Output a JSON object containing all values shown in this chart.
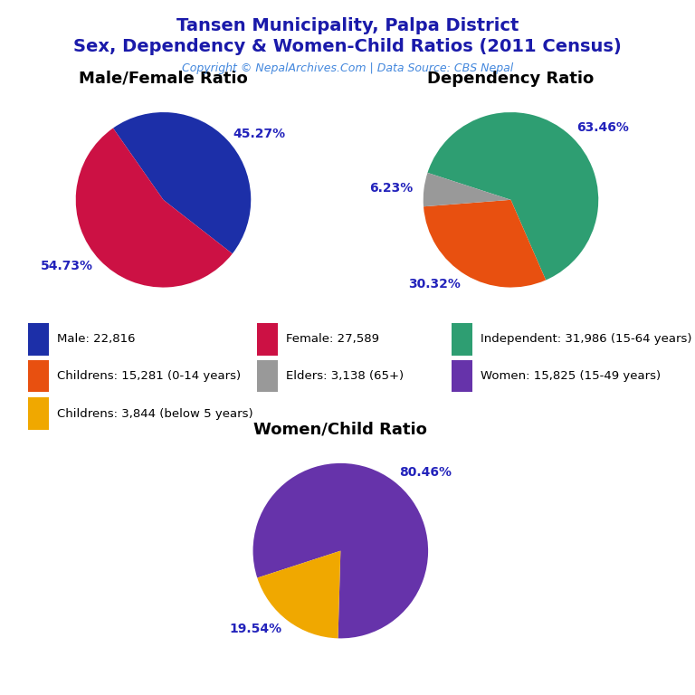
{
  "title_line1": "Tansen Municipality, Palpa District",
  "title_line2": "Sex, Dependency & Women-Child Ratios (2011 Census)",
  "copyright": "Copyright © NepalArchives.Com | Data Source: CBS Nepal",
  "title_color": "#1a1aaa",
  "copyright_color": "#4488dd",
  "background_color": "#ffffff",
  "pie1_title": "Male/Female Ratio",
  "pie1_values": [
    45.27,
    54.73
  ],
  "pie1_labels": [
    "45.27%",
    "54.73%"
  ],
  "pie1_colors": [
    "#1c2fa8",
    "#cc1144"
  ],
  "pie1_startangle": 125,
  "pie2_title": "Dependency Ratio",
  "pie2_values": [
    63.46,
    30.32,
    6.23
  ],
  "pie2_labels": [
    "63.46%",
    "30.32%",
    "6.23%"
  ],
  "pie2_colors": [
    "#2e9e72",
    "#e85010",
    "#999999"
  ],
  "pie2_startangle": 162,
  "pie3_title": "Women/Child Ratio",
  "pie3_values": [
    80.46,
    19.54
  ],
  "pie3_labels": [
    "80.46%",
    "19.54%"
  ],
  "pie3_colors": [
    "#6633aa",
    "#f0a800"
  ],
  "pie3_startangle": 198,
  "legend_items": [
    {
      "label": "Male: 22,816",
      "color": "#1c2fa8"
    },
    {
      "label": "Female: 27,589",
      "color": "#cc1144"
    },
    {
      "label": "Independent: 31,986 (15-64 years)",
      "color": "#2e9e72"
    },
    {
      "label": "Childrens: 15,281 (0-14 years)",
      "color": "#e85010"
    },
    {
      "label": "Elders: 3,138 (65+)",
      "color": "#999999"
    },
    {
      "label": "Women: 15,825 (15-49 years)",
      "color": "#6633aa"
    },
    {
      "label": "Childrens: 3,844 (below 5 years)",
      "color": "#f0a800"
    }
  ],
  "label_color": "#2222bb",
  "label_fontsize": 10,
  "pie_title_fontsize": 13
}
